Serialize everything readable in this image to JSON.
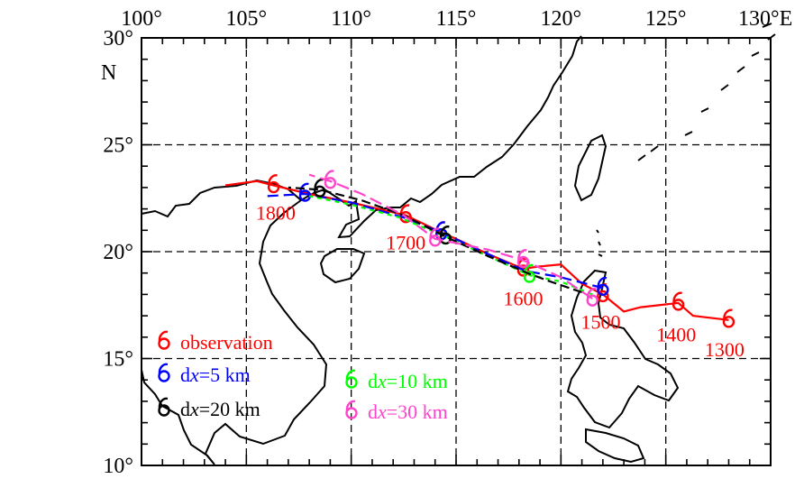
{
  "axes": {
    "lon_ticks": [
      {
        "value": 100,
        "label": "100°"
      },
      {
        "value": 105,
        "label": "105°"
      },
      {
        "value": 110,
        "label": "110°"
      },
      {
        "value": 115,
        "label": "115°"
      },
      {
        "value": 120,
        "label": "120°"
      },
      {
        "value": 125,
        "label": "125°"
      },
      {
        "value": 130,
        "label": "130°E"
      }
    ],
    "lat_ticks": [
      {
        "value": 30,
        "label": "30°"
      },
      {
        "value": 25,
        "label": "25°"
      },
      {
        "value": 20,
        "label": "20°"
      },
      {
        "value": 15,
        "label": "15°"
      },
      {
        "value": 10,
        "label": "10°"
      }
    ],
    "lat_unit": "N",
    "lon_range": [
      100,
      130
    ],
    "lat_range": [
      10,
      30
    ]
  },
  "track_labels": [
    {
      "text": "1800",
      "lon": 106.4,
      "lat": 21.5
    },
    {
      "text": "1700",
      "lon": 112.6,
      "lat": 20.1
    },
    {
      "text": "1600",
      "lon": 118.2,
      "lat": 17.5
    },
    {
      "text": "1500",
      "lon": 121.9,
      "lat": 16.4
    },
    {
      "text": "1400",
      "lon": 125.5,
      "lat": 15.8
    },
    {
      "text": "1300",
      "lon": 127.8,
      "lat": 15.1
    }
  ],
  "legend": [
    {
      "label": "observation",
      "color": "#ff0000",
      "italic_part": ""
    },
    {
      "label": "dx=5 km",
      "color": "#0000ff",
      "italic_part": "x"
    },
    {
      "label": "dx=20 km",
      "color": "#000000",
      "italic_part": "x"
    },
    {
      "label": "dx=10 km",
      "color": "#00ff00",
      "italic_part": "x"
    },
    {
      "label": "dx=30 km",
      "color": "#ff44cc",
      "italic_part": "x"
    }
  ],
  "tracks": [
    {
      "name": "observation",
      "color": "#ff0000",
      "dash": "",
      "points": [
        [
          128.0,
          16.8
        ],
        [
          126.3,
          17.0
        ],
        [
          125.6,
          17.6
        ],
        [
          123.8,
          17.4
        ],
        [
          123.0,
          17.2
        ],
        [
          122.0,
          18.0
        ],
        [
          121.0,
          18.5
        ],
        [
          120.0,
          19.4
        ],
        [
          118.9,
          19.3
        ],
        [
          118.2,
          19.2
        ],
        [
          116.5,
          19.9
        ],
        [
          115.0,
          20.6
        ],
        [
          114.3,
          20.9
        ],
        [
          112.6,
          21.7
        ],
        [
          110.0,
          22.3
        ],
        [
          108.0,
          22.7
        ],
        [
          106.3,
          23.1
        ],
        [
          105.5,
          23.3
        ],
        [
          104.0,
          23.1
        ]
      ],
      "markers": [
        [
          128.0,
          16.8
        ],
        [
          125.6,
          17.6
        ],
        [
          122.0,
          18.0
        ],
        [
          118.2,
          19.2
        ],
        [
          114.3,
          20.9
        ],
        [
          112.6,
          21.7
        ],
        [
          106.3,
          23.1
        ]
      ]
    },
    {
      "name": "dx=5 km",
      "color": "#0000ff",
      "dash": "12,6",
      "points": [
        [
          122.0,
          18.3
        ],
        [
          120.0,
          18.8
        ],
        [
          118.3,
          19.1
        ],
        [
          116.5,
          19.9
        ],
        [
          114.3,
          20.9
        ],
        [
          112.5,
          21.6
        ],
        [
          110.0,
          22.3
        ],
        [
          107.8,
          22.7
        ],
        [
          106.0,
          22.6
        ]
      ],
      "markers": [
        [
          122.0,
          18.3
        ],
        [
          114.3,
          20.9
        ],
        [
          107.8,
          22.7
        ]
      ]
    },
    {
      "name": "dx=10 km",
      "color": "#00ff00",
      "dash": "5,5",
      "points": [
        [
          121.5,
          18.0
        ],
        [
          120.0,
          18.6
        ],
        [
          118.5,
          18.9
        ],
        [
          116.5,
          19.8
        ],
        [
          114.5,
          20.7
        ],
        [
          112.3,
          21.6
        ],
        [
          110.0,
          22.2
        ],
        [
          108.0,
          22.6
        ]
      ],
      "markers": [
        [
          118.5,
          18.9
        ],
        [
          114.5,
          20.7
        ]
      ]
    },
    {
      "name": "dx=20 km",
      "color": "#000000",
      "dash": "10,5",
      "points": [
        [
          121.0,
          18.1
        ],
        [
          119.5,
          18.6
        ],
        [
          118.4,
          19.0
        ],
        [
          116.5,
          19.8
        ],
        [
          114.5,
          20.7
        ],
        [
          112.5,
          21.7
        ],
        [
          110.5,
          22.4
        ],
        [
          108.5,
          22.9
        ],
        [
          107.0,
          23.0
        ]
      ],
      "markers": [
        [
          114.5,
          20.7
        ],
        [
          108.5,
          22.9
        ]
      ]
    },
    {
      "name": "dx=30 km",
      "color": "#ff44cc",
      "dash": "14,6",
      "points": [
        [
          121.5,
          17.8
        ],
        [
          120.0,
          18.8
        ],
        [
          118.2,
          19.6
        ],
        [
          116.5,
          20.1
        ],
        [
          114.0,
          20.6
        ],
        [
          112.5,
          21.7
        ],
        [
          110.5,
          22.7
        ],
        [
          109.0,
          23.3
        ],
        [
          108.0,
          23.6
        ]
      ],
      "markers": [
        [
          121.5,
          17.8
        ],
        [
          118.2,
          19.6
        ],
        [
          114.0,
          20.6
        ],
        [
          109.0,
          23.3
        ]
      ]
    }
  ]
}
